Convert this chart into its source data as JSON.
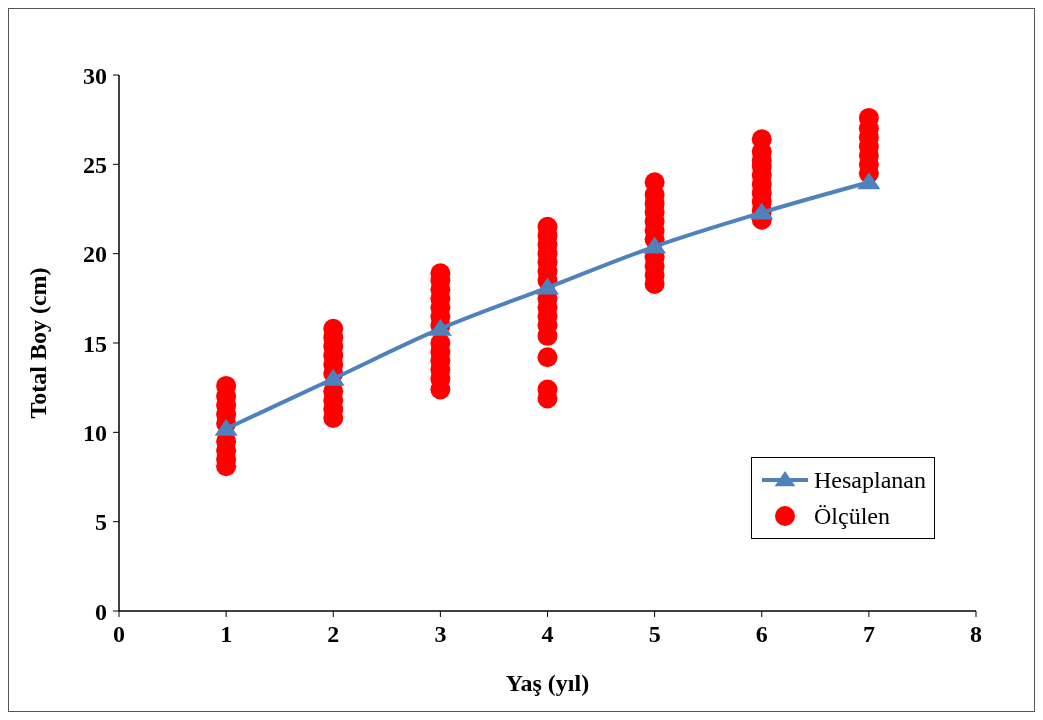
{
  "chart_data": {
    "type": "scatter",
    "xlabel": "Yaş (yıl)",
    "ylabel": "Total Boy (cm)",
    "xlim": [
      0,
      8
    ],
    "xticks": [
      0,
      1,
      2,
      3,
      4,
      5,
      6,
      7,
      8
    ],
    "ylim": [
      0,
      30
    ],
    "yticks": [
      0,
      5,
      10,
      15,
      20,
      25,
      30
    ],
    "grid": false,
    "legend": "bottom right",
    "series": [
      {
        "name": "Hesaplanan",
        "type": "line",
        "color": "#4f81bd",
        "marker": "triangle",
        "line_style": "solid",
        "x": [
          1,
          2,
          3,
          4,
          5,
          6,
          7
        ],
        "values": [
          10.2,
          13.0,
          15.8,
          18.1,
          20.4,
          22.3,
          24.0
        ]
      },
      {
        "name": "Ölçülen",
        "color": "#ff0000",
        "marker": "circle",
        "x": [
          1,
          1,
          1,
          1,
          1,
          1,
          1,
          1,
          1,
          2,
          2,
          2,
          2,
          2,
          2,
          2,
          2,
          2,
          2,
          3,
          3,
          3,
          3,
          3,
          3,
          3,
          3,
          3,
          3,
          3,
          3,
          3,
          4,
          4,
          4,
          4,
          4,
          4,
          4,
          4,
          4,
          4,
          4,
          4,
          4,
          4,
          4,
          5,
          5,
          5,
          5,
          5,
          5,
          5,
          5,
          5,
          5,
          5,
          6,
          6,
          6,
          6,
          6,
          6,
          6,
          6,
          6,
          6,
          7,
          7,
          7,
          7,
          7,
          7,
          7
        ],
        "values": [
          8.1,
          8.5,
          9.0,
          9.5,
          10.5,
          11.0,
          11.5,
          12.0,
          12.6,
          10.8,
          11.3,
          11.8,
          12.3,
          13.3,
          13.8,
          14.3,
          14.8,
          15.3,
          15.8,
          12.4,
          13.0,
          13.5,
          14.0,
          14.5,
          15.0,
          16.0,
          16.5,
          17.0,
          17.5,
          18.0,
          18.5,
          18.9,
          11.9,
          12.4,
          14.2,
          15.4,
          16.0,
          16.5,
          17.0,
          17.5,
          18.5,
          19.0,
          19.5,
          20.0,
          20.5,
          21.0,
          21.5,
          18.3,
          18.8,
          19.3,
          19.8,
          20.8,
          21.3,
          21.8,
          22.3,
          22.8,
          23.3,
          24.0,
          21.9,
          22.4,
          22.9,
          23.4,
          23.9,
          24.4,
          24.9,
          25.2,
          25.7,
          26.4,
          24.5,
          25.0,
          25.5,
          26.0,
          26.5,
          27.0,
          27.6
        ]
      }
    ]
  }
}
